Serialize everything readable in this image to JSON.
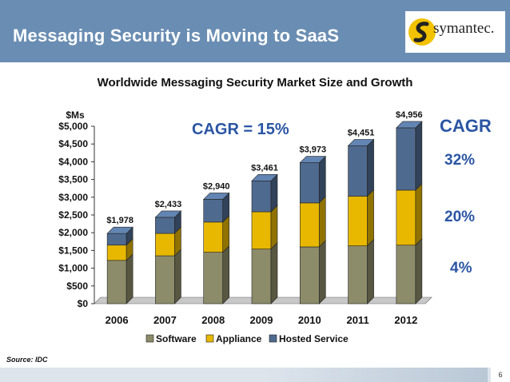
{
  "slide": {
    "title": "Messaging Security is Moving to SaaS",
    "logo_text": "symantec.",
    "source": "Source: IDC",
    "page_number": "6"
  },
  "annotations": {
    "cagr_total": "CAGR = 15%",
    "cagr_heading": "CAGR",
    "cagr_hosted": "32%",
    "cagr_appliance": "20%",
    "cagr_software": "4%"
  },
  "colors": {
    "header": "#6a8db3",
    "software": "#8c8c6a",
    "appliance": "#e8b800",
    "hosted": "#4f6a8f",
    "accent_text": "#2a55a4"
  },
  "chart_data": {
    "type": "bar",
    "stacked": true,
    "title": "Worldwide Messaging Security Market Size and Growth",
    "ylabel": "$Ms",
    "categories": [
      "2006",
      "2007",
      "2008",
      "2009",
      "2010",
      "2011",
      "2012"
    ],
    "series": [
      {
        "name": "Software",
        "values": [
          1220,
          1350,
          1450,
          1540,
          1600,
          1630,
          1650
        ]
      },
      {
        "name": "Appliance",
        "values": [
          430,
          630,
          850,
          1050,
          1240,
          1400,
          1550
        ]
      },
      {
        "name": "Hosted Service",
        "values": [
          328,
          453,
          640,
          871,
          1133,
          1421,
          1756
        ]
      }
    ],
    "totals": [
      1978,
      2433,
      2940,
      3461,
      3973,
      4451,
      4956
    ],
    "total_labels": [
      "$1,978",
      "$2,433",
      "$2,940",
      "$3,461",
      "$3,973",
      "$4,451",
      "$4,956"
    ],
    "ylim": [
      0,
      5000
    ],
    "yticks": [
      0,
      500,
      1000,
      1500,
      2000,
      2500,
      3000,
      3500,
      4000,
      4500,
      5000
    ],
    "ytick_labels": [
      "$0",
      "$500",
      "$1,000",
      "$1,500",
      "$2,000",
      "$2,500",
      "$3,000",
      "$3,500",
      "$4,000",
      "$4,500",
      "$5,000"
    ],
    "legend": [
      "Software",
      "Appliance",
      "Hosted Service"
    ],
    "legend_position": "bottom"
  }
}
